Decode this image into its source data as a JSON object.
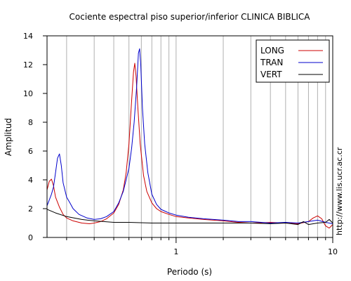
{
  "chart_data": {
    "type": "line",
    "title": "Cociente espectral piso superior/inferior  CLINICA BIBLICA",
    "xlabel": "Periodo (s)",
    "ylabel": "Amplitud",
    "x_scale": "log",
    "xlim": [
      0.15,
      10
    ],
    "ylim": [
      0,
      14
    ],
    "x_ticks": [
      {
        "value": 1,
        "label": "1"
      },
      {
        "value": 10,
        "label": "10"
      }
    ],
    "y_ticks": [
      0,
      2,
      4,
      6,
      8,
      10,
      12,
      14
    ],
    "grid": {
      "x_minor": true,
      "y": false
    },
    "legend": {
      "placement": "top-right"
    },
    "watermark": "http://www.lis.ucr.ac.cr",
    "series": [
      {
        "name": "LONG",
        "color": "#cc0000",
        "points": [
          [
            0.15,
            3.3
          ],
          [
            0.155,
            3.9
          ],
          [
            0.16,
            4.05
          ],
          [
            0.165,
            3.6
          ],
          [
            0.17,
            2.8
          ],
          [
            0.18,
            2.1
          ],
          [
            0.19,
            1.6
          ],
          [
            0.2,
            1.35
          ],
          [
            0.22,
            1.15
          ],
          [
            0.25,
            1.0
          ],
          [
            0.28,
            0.95
          ],
          [
            0.3,
            1.0
          ],
          [
            0.33,
            1.1
          ],
          [
            0.36,
            1.3
          ],
          [
            0.4,
            1.7
          ],
          [
            0.43,
            2.3
          ],
          [
            0.46,
            3.3
          ],
          [
            0.48,
            4.5
          ],
          [
            0.5,
            6.5
          ],
          [
            0.52,
            9.5
          ],
          [
            0.535,
            11.5
          ],
          [
            0.545,
            12.1
          ],
          [
            0.555,
            11.2
          ],
          [
            0.57,
            9.0
          ],
          [
            0.59,
            6.5
          ],
          [
            0.62,
            4.3
          ],
          [
            0.65,
            3.2
          ],
          [
            0.7,
            2.4
          ],
          [
            0.75,
            2.0
          ],
          [
            0.8,
            1.8
          ],
          [
            0.9,
            1.6
          ],
          [
            1.0,
            1.45
          ],
          [
            1.2,
            1.35
          ],
          [
            1.5,
            1.25
          ],
          [
            2.0,
            1.15
          ],
          [
            2.5,
            1.05
          ],
          [
            3.0,
            1.0
          ],
          [
            4.0,
            1.05
          ],
          [
            5.0,
            1.0
          ],
          [
            6.0,
            0.95
          ],
          [
            7.0,
            1.1
          ],
          [
            7.5,
            1.35
          ],
          [
            8.0,
            1.5
          ],
          [
            8.5,
            1.3
          ],
          [
            9.0,
            0.8
          ],
          [
            9.5,
            0.65
          ],
          [
            10.0,
            0.9
          ]
        ]
      },
      {
        "name": "TRAN",
        "color": "#0000cc",
        "points": [
          [
            0.15,
            2.2
          ],
          [
            0.155,
            2.6
          ],
          [
            0.16,
            3.0
          ],
          [
            0.165,
            3.5
          ],
          [
            0.17,
            4.5
          ],
          [
            0.175,
            5.5
          ],
          [
            0.18,
            5.8
          ],
          [
            0.185,
            5.0
          ],
          [
            0.19,
            3.8
          ],
          [
            0.2,
            2.8
          ],
          [
            0.21,
            2.4
          ],
          [
            0.22,
            2.0
          ],
          [
            0.24,
            1.6
          ],
          [
            0.27,
            1.35
          ],
          [
            0.3,
            1.25
          ],
          [
            0.33,
            1.3
          ],
          [
            0.36,
            1.45
          ],
          [
            0.4,
            1.8
          ],
          [
            0.43,
            2.4
          ],
          [
            0.46,
            3.2
          ],
          [
            0.5,
            4.8
          ],
          [
            0.52,
            6.2
          ],
          [
            0.54,
            8.0
          ],
          [
            0.56,
            10.5
          ],
          [
            0.575,
            12.8
          ],
          [
            0.585,
            13.1
          ],
          [
            0.595,
            12.0
          ],
          [
            0.61,
            9.0
          ],
          [
            0.63,
            6.5
          ],
          [
            0.66,
            4.5
          ],
          [
            0.7,
            3.0
          ],
          [
            0.75,
            2.3
          ],
          [
            0.8,
            1.95
          ],
          [
            0.9,
            1.7
          ],
          [
            1.0,
            1.55
          ],
          [
            1.2,
            1.4
          ],
          [
            1.5,
            1.3
          ],
          [
            2.0,
            1.2
          ],
          [
            2.5,
            1.1
          ],
          [
            3.0,
            1.1
          ],
          [
            4.0,
            1.0
          ],
          [
            5.0,
            1.05
          ],
          [
            6.0,
            1.0
          ],
          [
            7.0,
            1.1
          ],
          [
            8.0,
            1.2
          ],
          [
            9.0,
            1.05
          ],
          [
            10.0,
            0.95
          ]
        ]
      },
      {
        "name": "VERT",
        "color": "#000000",
        "points": [
          [
            0.15,
            1.95
          ],
          [
            0.17,
            1.7
          ],
          [
            0.2,
            1.45
          ],
          [
            0.25,
            1.25
          ],
          [
            0.3,
            1.15
          ],
          [
            0.4,
            1.05
          ],
          [
            0.5,
            1.05
          ],
          [
            0.7,
            1.0
          ],
          [
            1.0,
            1.0
          ],
          [
            1.5,
            1.0
          ],
          [
            2.0,
            1.0
          ],
          [
            3.0,
            1.0
          ],
          [
            4.0,
            0.95
          ],
          [
            5.0,
            1.0
          ],
          [
            6.0,
            0.9
          ],
          [
            6.5,
            1.1
          ],
          [
            7.0,
            0.9
          ],
          [
            8.0,
            1.0
          ],
          [
            9.0,
            1.05
          ],
          [
            9.5,
            1.25
          ],
          [
            10.0,
            1.0
          ]
        ]
      }
    ]
  }
}
